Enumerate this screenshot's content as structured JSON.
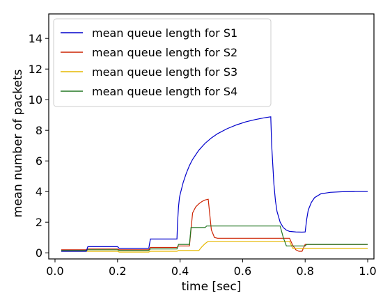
{
  "chart_data": {
    "type": "line",
    "xlabel": "time [sec]",
    "ylabel": "mean number of packets",
    "xlim": [
      -0.02,
      1.02
    ],
    "ylim": [
      -0.4,
      15.6
    ],
    "xticks": [
      "0.0",
      "0.2",
      "0.4",
      "0.6",
      "0.8",
      "1.0"
    ],
    "yticks": [
      "0",
      "2",
      "4",
      "6",
      "8",
      "10",
      "12",
      "14"
    ],
    "grid": false,
    "legend_position": "top-left",
    "series": [
      {
        "name": "mean queue length for S1",
        "color": "#0000cc",
        "x": [
          0.02,
          0.1,
          0.105,
          0.2,
          0.205,
          0.3,
          0.305,
          0.39,
          0.392,
          0.395,
          0.398,
          0.4,
          0.41,
          0.42,
          0.43,
          0.44,
          0.46,
          0.48,
          0.5,
          0.52,
          0.55,
          0.58,
          0.61,
          0.64,
          0.67,
          0.69,
          0.693,
          0.7,
          0.705,
          0.71,
          0.72,
          0.73,
          0.74,
          0.75,
          0.77,
          0.79,
          0.8,
          0.805,
          0.81,
          0.82,
          0.83,
          0.85,
          0.88,
          0.92,
          0.96,
          1.0
        ],
        "values": [
          0.1,
          0.1,
          0.4,
          0.4,
          0.3,
          0.3,
          0.9,
          0.9,
          2.0,
          3.0,
          3.6,
          3.8,
          4.6,
          5.2,
          5.7,
          6.1,
          6.7,
          7.15,
          7.5,
          7.78,
          8.1,
          8.35,
          8.55,
          8.7,
          8.82,
          8.88,
          7.0,
          4.5,
          3.4,
          2.7,
          2.0,
          1.65,
          1.48,
          1.4,
          1.36,
          1.35,
          1.36,
          2.2,
          2.8,
          3.3,
          3.6,
          3.85,
          3.95,
          3.99,
          4.0,
          4.0
        ]
      },
      {
        "name": "mean queue length for S2",
        "color": "#cc2200",
        "x": [
          0.02,
          0.1,
          0.105,
          0.2,
          0.205,
          0.3,
          0.305,
          0.39,
          0.395,
          0.4,
          0.43,
          0.44,
          0.45,
          0.46,
          0.47,
          0.48,
          0.49,
          0.5,
          0.51,
          0.52,
          0.7,
          0.72,
          0.75,
          0.76,
          0.77,
          0.78,
          0.79,
          0.8,
          1.0
        ],
        "values": [
          0.2,
          0.2,
          0.25,
          0.25,
          0.2,
          0.2,
          0.35,
          0.35,
          0.45,
          0.45,
          0.45,
          2.6,
          3.0,
          3.2,
          3.35,
          3.45,
          3.5,
          1.5,
          1.0,
          0.95,
          0.95,
          0.95,
          0.95,
          0.5,
          0.2,
          0.1,
          0.1,
          0.55,
          0.55
        ]
      },
      {
        "name": "mean queue length for S3",
        "color": "#e6b800",
        "x": [
          0.02,
          0.1,
          0.105,
          0.2,
          0.205,
          0.3,
          0.305,
          0.39,
          0.395,
          0.46,
          0.47,
          0.48,
          0.49,
          0.5,
          0.7,
          0.75,
          0.76,
          0.8,
          1.0
        ],
        "values": [
          0.1,
          0.1,
          0.1,
          0.1,
          0.05,
          0.05,
          0.1,
          0.1,
          0.15,
          0.15,
          0.4,
          0.6,
          0.75,
          0.75,
          0.75,
          0.75,
          0.3,
          0.3,
          0.3
        ]
      },
      {
        "name": "mean queue length for S4",
        "color": "#227722",
        "x": [
          0.02,
          0.1,
          0.105,
          0.2,
          0.205,
          0.3,
          0.305,
          0.39,
          0.395,
          0.43,
          0.435,
          0.48,
          0.485,
          0.5,
          0.7,
          0.72,
          0.73,
          0.74,
          0.8,
          0.805,
          1.0
        ],
        "values": [
          0.15,
          0.15,
          0.2,
          0.2,
          0.15,
          0.15,
          0.25,
          0.25,
          0.55,
          0.55,
          1.65,
          1.65,
          1.75,
          1.75,
          1.75,
          1.75,
          1.0,
          0.45,
          0.45,
          0.55,
          0.55
        ]
      }
    ]
  }
}
